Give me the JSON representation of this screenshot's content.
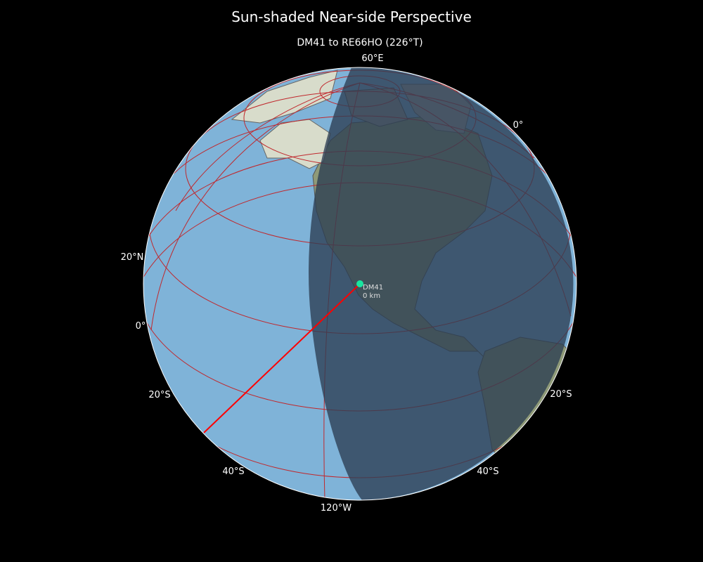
{
  "title": "Sun-shaded Near-side Perspective",
  "subtitle": "DM41 to RE66HO (226°T)",
  "colors": {
    "ocean": "#7fb3d8",
    "land": "#8f9a78",
    "night": "#2c3e52",
    "grid": "#c0282d",
    "path": "#ff0000",
    "marker": "#19e6a0"
  },
  "grid_labels": {
    "top": "60°E",
    "right_top": "0°",
    "left_20n": "20°N",
    "left_0": "0°",
    "left_20s": "20°S",
    "bottom_40s_left": "40°S",
    "bottom_meridian": "120°W",
    "bottom_40s_right": "40°S",
    "right_20s": "20°S"
  },
  "marker": {
    "label": "DM41",
    "distance": "0 km"
  }
}
